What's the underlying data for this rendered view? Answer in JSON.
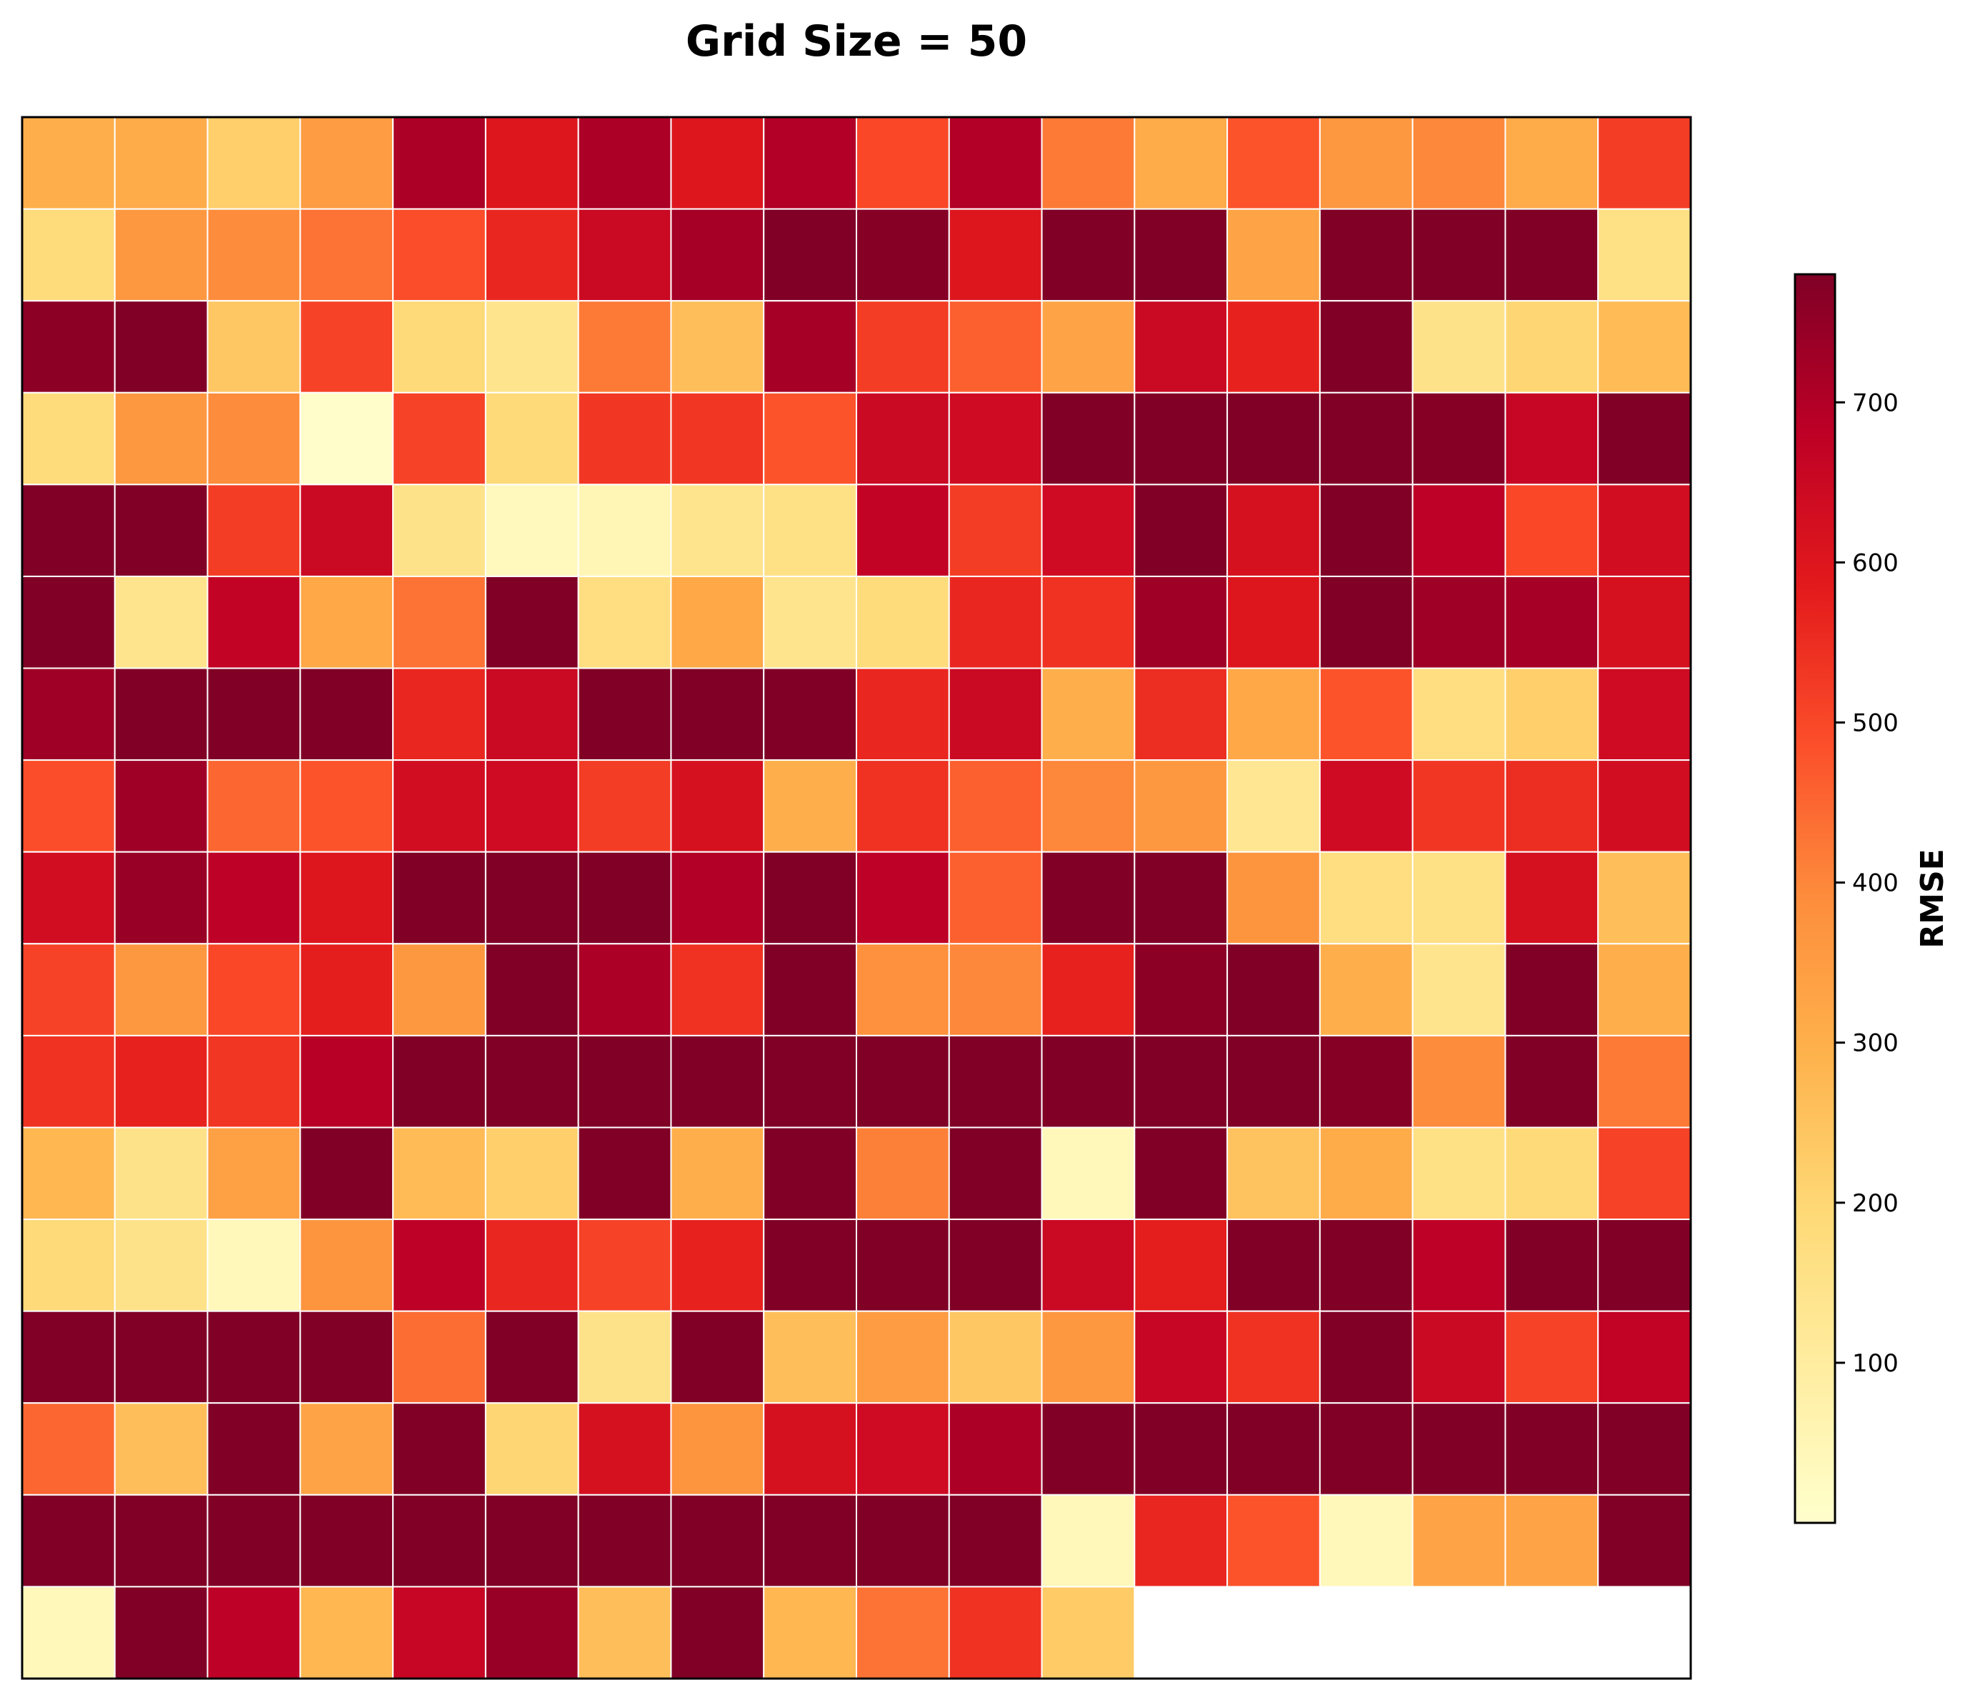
{
  "chart_data": {
    "type": "heatmap",
    "title": "Grid Size = 50",
    "rows": 17,
    "cols": 18,
    "colormap": [
      "#ffffcc",
      "#ffeda0",
      "#fed976",
      "#feb24c",
      "#fd8d3c",
      "#fc4e2a",
      "#e31a1c",
      "#bd0026",
      "#800026"
    ],
    "vmin": 0,
    "vmax": 780,
    "cell_edge_color": "#ffffff",
    "colorbar": {
      "label": "RMSE",
      "ticks": [
        100,
        200,
        300,
        400,
        500,
        600,
        700
      ]
    },
    "values": [
      [
        300,
        310,
        220,
        350,
        710,
        600,
        710,
        600,
        700,
        500,
        700,
        420,
        310,
        480,
        360,
        400,
        310,
        520
      ],
      [
        180,
        360,
        390,
        430,
        490,
        560,
        650,
        720,
        780,
        770,
        600,
        780,
        780,
        330,
        780,
        780,
        780,
        160
      ],
      [
        760,
        780,
        240,
        510,
        190,
        140,
        420,
        260,
        720,
        520,
        460,
        330,
        650,
        570,
        780,
        150,
        200,
        270
      ],
      [
        180,
        360,
        390,
        5,
        510,
        190,
        530,
        530,
        480,
        650,
        640,
        780,
        780,
        780,
        780,
        770,
        660,
        780
      ],
      [
        780,
        780,
        520,
        650,
        150,
        30,
        50,
        140,
        160,
        670,
        520,
        640,
        780,
        620,
        780,
        680,
        500,
        630
      ],
      [
        780,
        140,
        670,
        320,
        430,
        780,
        170,
        320,
        140,
        180,
        560,
        540,
        730,
        600,
        780,
        730,
        720,
        620
      ],
      [
        730,
        780,
        780,
        780,
        560,
        650,
        780,
        780,
        780,
        560,
        650,
        300,
        550,
        320,
        480,
        170,
        220,
        640
      ],
      [
        490,
        730,
        450,
        480,
        630,
        640,
        520,
        620,
        300,
        540,
        460,
        400,
        360,
        130,
        640,
        530,
        550,
        630
      ],
      [
        630,
        740,
        680,
        600,
        780,
        780,
        780,
        700,
        780,
        680,
        460,
        780,
        780,
        370,
        170,
        160,
        620,
        260
      ],
      [
        510,
        360,
        500,
        580,
        360,
        780,
        710,
        540,
        780,
        380,
        400,
        570,
        760,
        780,
        300,
        140,
        780,
        300
      ],
      [
        540,
        570,
        530,
        690,
        780,
        780,
        780,
        780,
        780,
        780,
        780,
        780,
        780,
        780,
        770,
        390,
        780,
        420
      ],
      [
        280,
        150,
        340,
        780,
        270,
        220,
        780,
        300,
        780,
        410,
        780,
        40,
        780,
        250,
        310,
        160,
        190,
        510
      ],
      [
        190,
        150,
        40,
        370,
        680,
        560,
        510,
        570,
        780,
        780,
        780,
        650,
        580,
        780,
        780,
        680,
        780,
        780
      ],
      [
        780,
        780,
        780,
        780,
        440,
        780,
        150,
        780,
        260,
        350,
        240,
        360,
        660,
        540,
        780,
        650,
        510,
        670
      ],
      [
        450,
        260,
        780,
        330,
        780,
        200,
        620,
        370,
        620,
        640,
        710,
        780,
        780,
        780,
        780,
        780,
        780,
        780
      ],
      [
        780,
        780,
        780,
        780,
        780,
        780,
        780,
        780,
        780,
        780,
        780,
        40,
        560,
        480,
        40,
        330,
        330,
        780
      ],
      [
        40,
        780,
        680,
        280,
        660,
        740,
        260,
        780,
        280,
        430,
        540,
        230,
        null,
        null,
        null,
        null,
        null,
        null
      ]
    ]
  }
}
